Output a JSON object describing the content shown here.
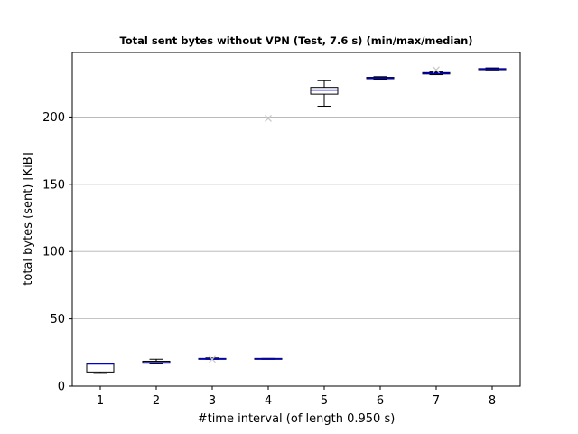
{
  "chart_data": {
    "type": "box",
    "title": "Total sent bytes without VPN (Test, 7.6 s) (min/max/median)",
    "xlabel": "#time interval (of length 0.950 s)",
    "ylabel": "total bytes (sent) [KiB]",
    "categories": [
      "1",
      "2",
      "3",
      "4",
      "5",
      "6",
      "7",
      "8"
    ],
    "xlim": [
      0.5,
      8.5
    ],
    "ylim": [
      0,
      248
    ],
    "yticks": [
      0,
      50,
      100,
      150,
      200
    ],
    "grid": "y",
    "boxes": [
      {
        "x": 1,
        "whisker_low": 9.5,
        "q1": 10.5,
        "median": 16.5,
        "q3": 17.0,
        "whisker_high": 17.0,
        "fliers": []
      },
      {
        "x": 2,
        "whisker_low": 16.5,
        "q1": 17.0,
        "median": 17.5,
        "q3": 18.5,
        "whisker_high": 20.0,
        "fliers": []
      },
      {
        "x": 3,
        "whisker_low": 20.0,
        "q1": 20.0,
        "median": 20.3,
        "q3": 20.6,
        "whisker_high": 21.0,
        "fliers": [
          20.0
        ]
      },
      {
        "x": 4,
        "whisker_low": 20.0,
        "q1": 20.0,
        "median": 20.3,
        "q3": 20.6,
        "whisker_high": 20.6,
        "fliers": [
          199
        ]
      },
      {
        "x": 5,
        "whisker_low": 208.0,
        "q1": 217.0,
        "median": 220.0,
        "q3": 222.0,
        "whisker_high": 227.0,
        "fliers": []
      },
      {
        "x": 6,
        "whisker_low": 228.0,
        "q1": 228.5,
        "median": 229.0,
        "q3": 229.5,
        "whisker_high": 230.0,
        "fliers": []
      },
      {
        "x": 7,
        "whisker_low": 231.5,
        "q1": 232.0,
        "median": 232.5,
        "q3": 233.0,
        "whisker_high": 233.5,
        "fliers": [
          235.0
        ]
      },
      {
        "x": 8,
        "whisker_low": 235.0,
        "q1": 235.2,
        "median": 235.6,
        "q3": 236.0,
        "whisker_high": 236.5,
        "fliers": []
      }
    ],
    "colors": {
      "box": "#000000",
      "median": "#0000cc",
      "flier": "#c8c8c8",
      "grid": "#b0b0b0"
    }
  }
}
